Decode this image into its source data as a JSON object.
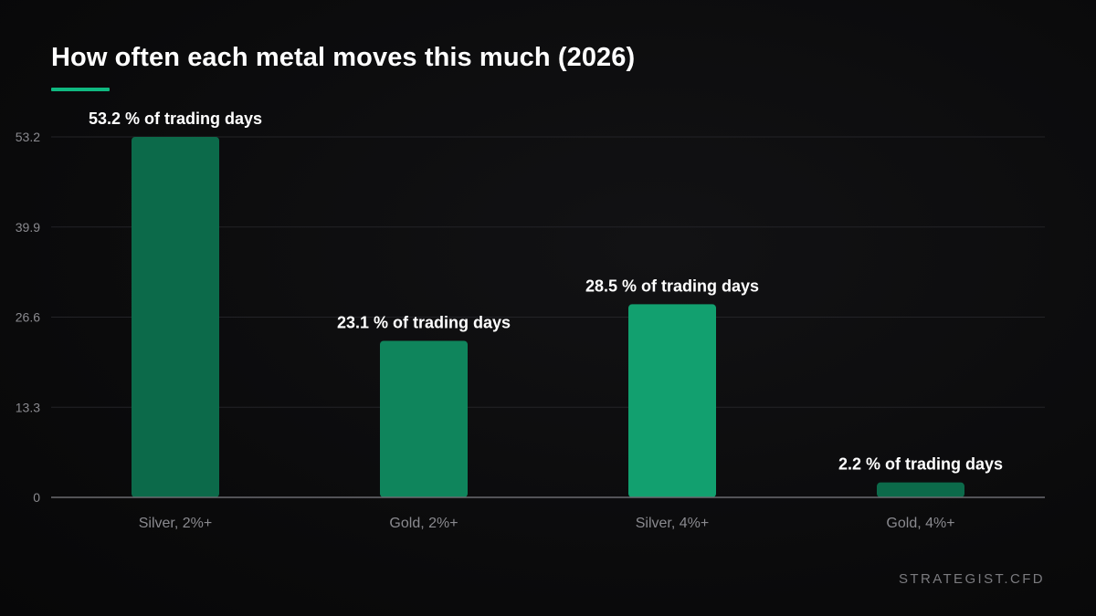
{
  "header": {
    "title": "How often each metal moves this much (2026)"
  },
  "colors": {
    "accent": "#10b981",
    "bar_dark": "#0c6a4a",
    "bar_mid": "#0f855c",
    "bar_light": "#12a06f",
    "grid": "#232327",
    "axis": "#6b6b70",
    "tick_text": "#8a8a8f",
    "label_text": "#ffffff"
  },
  "chart_data": {
    "type": "bar",
    "title": "How often each metal moves this much (2026)",
    "categories": [
      "Silver, 2%+",
      "Gold, 2%+",
      "Silver, 4%+",
      "Gold, 4%+"
    ],
    "values": [
      53.2,
      23.1,
      28.5,
      2.2
    ],
    "data_labels": [
      "53.2 % of trading days",
      "23.1 % of trading days",
      "28.5 % of trading days",
      "2.2 % of trading days"
    ],
    "bar_colors": [
      "#0c6a4a",
      "#0f855c",
      "#12a06f",
      "#0c6a4a"
    ],
    "yticks": [
      "0",
      "13.3",
      "26.6",
      "39.9",
      "53.2"
    ],
    "ytick_values": [
      0,
      13.3,
      26.6,
      39.9,
      53.2
    ],
    "ylim": [
      0,
      53.2
    ],
    "grid": true,
    "xlabel": "",
    "ylabel": ""
  },
  "footer": {
    "brand": "STRATEGIST.CFD"
  }
}
